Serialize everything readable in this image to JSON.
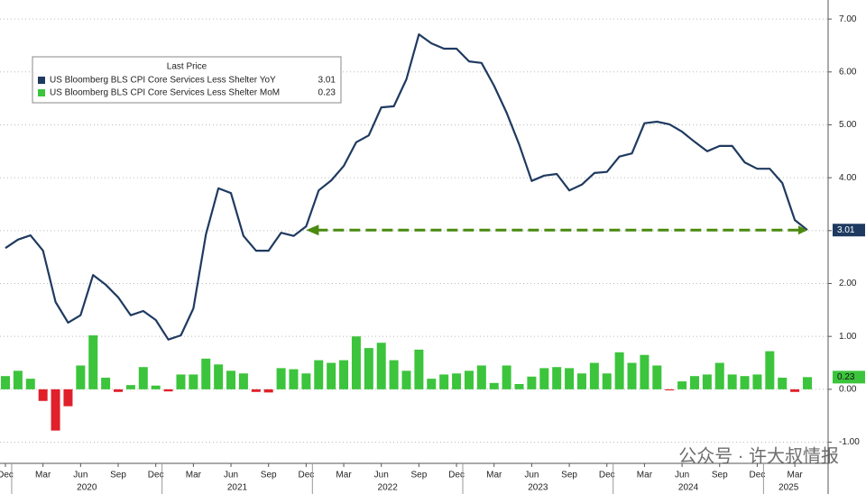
{
  "chart_data": {
    "type": "line_bar",
    "legend_title": "Last Price",
    "categories": [
      "Dec",
      null,
      null,
      "Mar",
      null,
      null,
      "Jun",
      null,
      null,
      "Sep",
      null,
      null,
      "Dec",
      null,
      null,
      "Mar",
      null,
      null,
      "Jun",
      null,
      null,
      "Sep",
      null,
      null,
      "Dec",
      null,
      null,
      "Mar",
      null,
      null,
      "Jun",
      null,
      null,
      "Sep",
      null,
      null,
      "Dec",
      null,
      null,
      "Mar",
      null,
      null,
      "Jun",
      null,
      null,
      "Sep",
      null,
      null,
      "Dec",
      null,
      null,
      "Mar",
      null,
      null,
      "Jun",
      null,
      null,
      "Sep",
      null,
      null,
      "Dec",
      null,
      null,
      "Mar",
      null
    ],
    "years": [
      "2020",
      "2021",
      "2022",
      "2023",
      "2024",
      "2025"
    ],
    "series": [
      {
        "name": "US Bloomberg BLS CPI Core Services Less Shelter YoY",
        "kind": "line",
        "color": "#1f3a60",
        "values": [
          2.67,
          2.83,
          2.91,
          2.62,
          1.65,
          1.26,
          1.4,
          2.16,
          1.98,
          1.74,
          1.4,
          1.48,
          1.31,
          0.94,
          1.02,
          1.53,
          2.93,
          3.8,
          3.71,
          2.9,
          2.62,
          2.62,
          2.96,
          2.9,
          3.08,
          3.76,
          3.95,
          4.22,
          4.67,
          4.8,
          5.33,
          5.35,
          5.86,
          6.71,
          6.54,
          6.44,
          6.44,
          6.2,
          6.17,
          5.74,
          5.23,
          4.63,
          3.94,
          4.04,
          4.07,
          3.76,
          3.87,
          4.09,
          4.11,
          4.4,
          4.46,
          5.03,
          5.06,
          5.01,
          4.87,
          4.68,
          4.5,
          4.6,
          4.6,
          4.29,
          4.17,
          4.17,
          3.9,
          3.2,
          3.01
        ]
      },
      {
        "name": "US Bloomberg BLS CPI Core Services Less Shelter MoM",
        "kind": "bar",
        "color": "#3cc43c",
        "negative_color": "#e0202a",
        "values": [
          0.25,
          0.35,
          0.2,
          -0.22,
          -0.78,
          -0.32,
          0.45,
          1.02,
          0.22,
          -0.05,
          0.08,
          0.42,
          0.07,
          -0.04,
          0.28,
          0.28,
          0.58,
          0.47,
          0.35,
          0.3,
          -0.05,
          -0.06,
          0.4,
          0.38,
          0.3,
          0.55,
          0.5,
          0.55,
          1.0,
          0.78,
          0.88,
          0.55,
          0.35,
          0.75,
          0.2,
          0.28,
          0.3,
          0.35,
          0.45,
          0.12,
          0.45,
          0.1,
          0.24,
          0.4,
          0.42,
          0.4,
          0.3,
          0.5,
          0.3,
          0.7,
          0.5,
          0.65,
          0.45,
          -0.02,
          0.15,
          0.25,
          0.28,
          0.5,
          0.28,
          0.25,
          0.28,
          0.72,
          0.22,
          -0.05,
          0.23
        ]
      }
    ],
    "annotation_color": "#4a8a10",
    "ylim": [
      -1.4,
      7.36
    ],
    "yticks": [
      {
        "value": -1,
        "label": "-1.00"
      },
      {
        "value": 0,
        "label": "0.00"
      },
      {
        "value": 1,
        "label": "1.00"
      },
      {
        "value": 2,
        "label": "2.00"
      },
      {
        "value": 3,
        "label": "3.00"
      },
      {
        "value": 4,
        "label": "4.00"
      },
      {
        "value": 5,
        "label": "5.00"
      },
      {
        "value": 6,
        "label": "6.00"
      },
      {
        "value": 7,
        "label": "7.00"
      }
    ],
    "grid": true,
    "watermark": "公众号 · 许大叔情报"
  }
}
